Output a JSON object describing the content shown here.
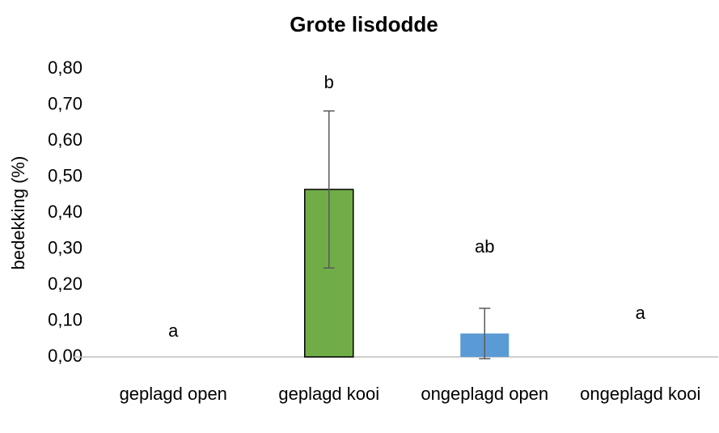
{
  "chart_data": {
    "type": "bar",
    "title": "Grote lisdodde",
    "ylabel": "bedekking (%)",
    "categories": [
      "geplagd open",
      "geplagd kooi",
      "ongeplagd open",
      "ongeplagd kooi"
    ],
    "values": [
      0,
      0.465,
      0.065,
      0
    ],
    "errors": [
      0,
      0.218,
      0.07,
      0
    ],
    "annotations": [
      "a",
      "b",
      "ab",
      "a"
    ],
    "colors": [
      "#70ad47",
      "#70ad47",
      "#5b9bd5",
      "#5b9bd5"
    ],
    "ylim": [
      0,
      0.8
    ],
    "yticks": [
      {
        "value": 0,
        "label": "0,00"
      },
      {
        "value": 0.1,
        "label": "0,10"
      },
      {
        "value": 0.2,
        "label": "0,20"
      },
      {
        "value": 0.3,
        "label": "0,30"
      },
      {
        "value": 0.4,
        "label": "0,40"
      },
      {
        "value": 0.5,
        "label": "0,50"
      },
      {
        "value": 0.6,
        "label": "0,60"
      },
      {
        "value": 0.7,
        "label": "0,70"
      },
      {
        "value": 0.8,
        "label": "0,80"
      }
    ],
    "grid": false
  }
}
